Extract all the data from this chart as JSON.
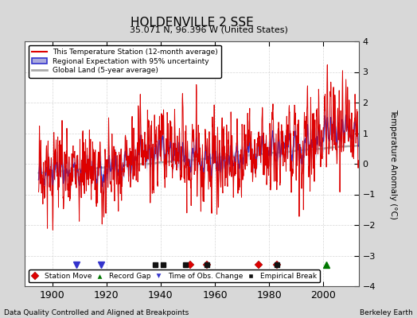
{
  "title": "HOLDENVILLE 2 SSE",
  "subtitle": "35.071 N, 96.396 W (United States)",
  "xlabel_bottom": "Data Quality Controlled and Aligned at Breakpoints",
  "xlabel_right": "Berkeley Earth",
  "ylabel": "Temperature Anomaly (°C)",
  "ylim": [
    -4,
    4
  ],
  "xlim": [
    1890,
    2013
  ],
  "xticks": [
    1900,
    1920,
    1940,
    1960,
    1980,
    2000
  ],
  "yticks": [
    -4,
    -3,
    -2,
    -1,
    0,
    1,
    2,
    3,
    4
  ],
  "outer_bg_color": "#d8d8d8",
  "plot_bg_color": "#ffffff",
  "grid_color": "#cccccc",
  "station_line_color": "#dd0000",
  "regional_line_color": "#3333cc",
  "regional_fill_color": "#aaaadd",
  "global_line_color": "#aaaaaa",
  "legend_labels": [
    "This Temperature Station (12-month average)",
    "Regional Expectation with 95% uncertainty",
    "Global Land (5-year average)"
  ],
  "markers": {
    "station_move": {
      "years": [
        1951,
        1957,
        1976,
        1983
      ],
      "color": "#dd0000",
      "marker": "D"
    },
    "record_gap": {
      "years": [
        2001
      ],
      "color": "#007700",
      "marker": "^"
    },
    "time_obs_change": {
      "years": [
        1909,
        1918
      ],
      "color": "#3333cc",
      "marker": "v"
    },
    "empirical_break": {
      "years": [
        1938,
        1941,
        1949,
        1957,
        1983
      ],
      "color": "#111111",
      "marker": "s"
    }
  },
  "seed": 17
}
